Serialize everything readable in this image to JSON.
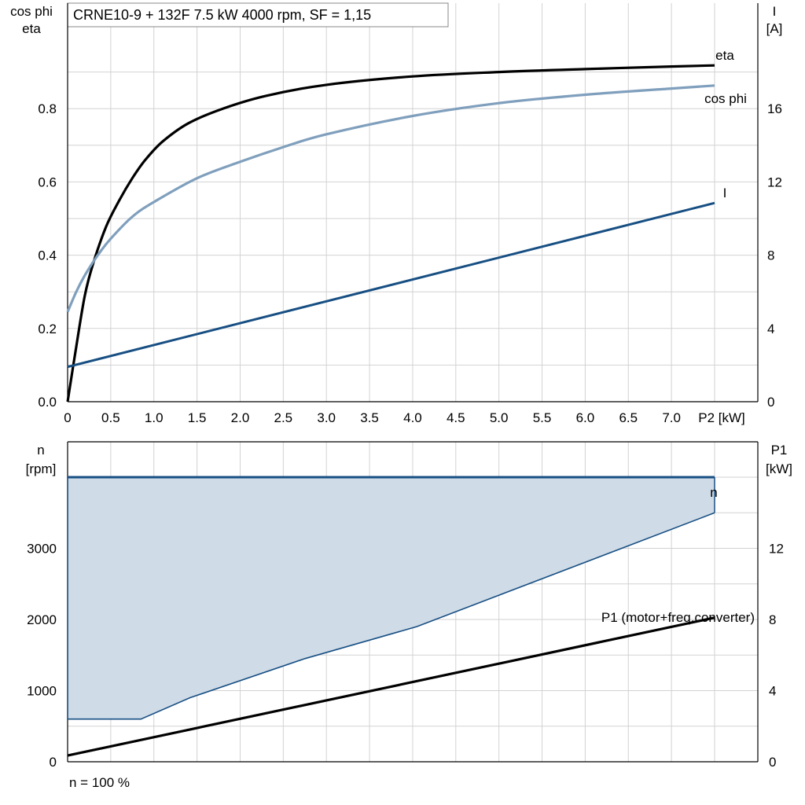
{
  "chart_data": [
    {
      "type": "line",
      "title": "CRNE10-9 + 132F   7.5 kW   4000 rpm, SF = 1,15",
      "ylabel_left": [
        "cos phi",
        "eta"
      ],
      "ylabel_right": [
        "I",
        "[A]"
      ],
      "xlabel": "P2 [kW]",
      "xlim": [
        0,
        7.5
      ],
      "ylim_left": [
        0,
        1.0
      ],
      "ylim_right": [
        0,
        20
      ],
      "x_ticks": [
        "0",
        "0.5",
        "1.0",
        "1.5",
        "2.0",
        "2.5",
        "3.0",
        "3.5",
        "4.0",
        "4.5",
        "5.0",
        "5.5",
        "6.0",
        "6.5",
        "7.0"
      ],
      "y_ticks_left": [
        "0.0",
        "0.2",
        "0.4",
        "0.6",
        "0.8"
      ],
      "y_ticks_right": [
        "0",
        "4",
        "8",
        "12",
        "16"
      ],
      "grid": true,
      "series": [
        {
          "name": "eta",
          "axis": "left",
          "color": "#000000",
          "x": [
            0,
            0.1,
            0.2,
            0.3,
            0.45,
            0.6,
            0.75,
            0.9,
            1.1,
            1.4,
            1.8,
            2.3,
            3.0,
            4.0,
            5.0,
            6.0,
            7.0,
            7.5
          ],
          "y": [
            0.0,
            0.15,
            0.29,
            0.38,
            0.48,
            0.55,
            0.61,
            0.66,
            0.71,
            0.76,
            0.8,
            0.835,
            0.865,
            0.888,
            0.9,
            0.908,
            0.915,
            0.918
          ]
        },
        {
          "name": "cos phi",
          "axis": "left",
          "color": "#7f9fbd",
          "x": [
            0,
            0.1,
            0.2,
            0.35,
            0.5,
            0.75,
            1.0,
            1.5,
            2.0,
            2.5,
            3.0,
            4.0,
            5.0,
            6.0,
            7.0,
            7.5
          ],
          "y": [
            0.245,
            0.3,
            0.345,
            0.4,
            0.445,
            0.505,
            0.545,
            0.61,
            0.655,
            0.695,
            0.73,
            0.78,
            0.815,
            0.838,
            0.855,
            0.863
          ]
        },
        {
          "name": "I",
          "axis": "right",
          "color": "#174f83",
          "x": [
            0,
            7.5
          ],
          "y": [
            1.9,
            10.85
          ]
        }
      ]
    },
    {
      "type": "area",
      "ylabel_left": [
        "n",
        "[rpm]"
      ],
      "ylabel_right": [
        "P1",
        "[kW]"
      ],
      "xlim": [
        0,
        7.5
      ],
      "ylim_left": [
        0,
        4500
      ],
      "ylim_right": [
        0,
        18
      ],
      "y_ticks_left": [
        "0",
        "1000",
        "2000",
        "3000"
      ],
      "y_ticks_right": [
        "0",
        "4",
        "8",
        "12"
      ],
      "footnote": "n = 100 %",
      "grid": true,
      "series": [
        {
          "name": "n",
          "axis": "left",
          "color": "#174f83",
          "x": [
            0,
            7.5
          ],
          "y": [
            4000,
            4000
          ]
        },
        {
          "name": "",
          "axis": "left",
          "color": "#174f83",
          "fill": "#cfdbe7",
          "x": [
            0,
            0.85,
            1.42,
            2.75,
            4.05,
            7.5
          ],
          "y": [
            600,
            600,
            900,
            1450,
            1900,
            3500
          ]
        },
        {
          "name": "P1 (motor+freq.converter)",
          "axis": "right",
          "color": "#000000",
          "x": [
            0,
            7.5
          ],
          "y": [
            0.35,
            8.1
          ]
        }
      ]
    }
  ]
}
